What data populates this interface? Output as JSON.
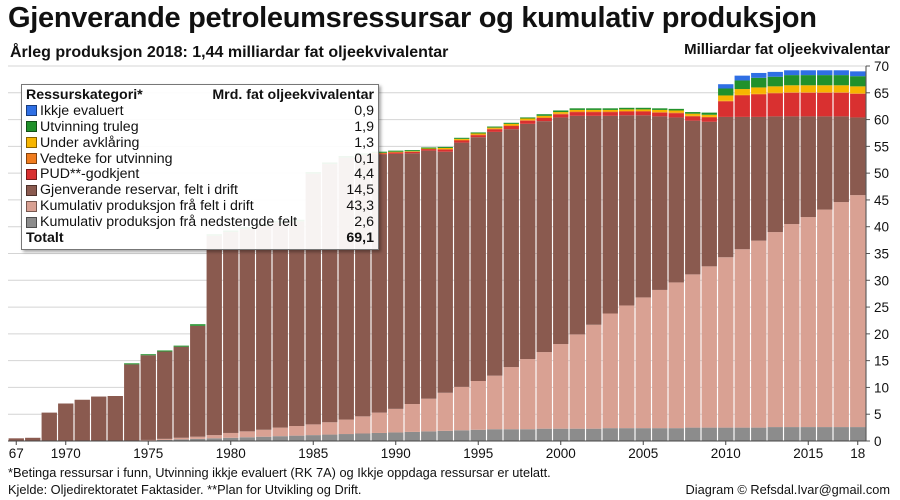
{
  "title": "Gjenverande petroleumsressursar og kumulativ produksjon",
  "subtitle": "Årleg produksjon 2018: 1,44 milliardar fat oljeekvivalentar",
  "footnote1": "*Betinga ressursar i funn, Utvinning ikkje evaluert (RK 7A) og Ikkje oppdaga ressursar er utelatt.",
  "footnote2": "Kjelde: Oljedirektoratet Faktasider. **Plan for Utvikling og Drift.",
  "credit": "Diagram © Refsdal.Ivar@gmail.com",
  "legend": {
    "header_label": "Ressurskategori*",
    "header_value": "Mrd. fat oljeekvivalentar",
    "total_label": "Totalt",
    "total_value": "69,1",
    "items": [
      {
        "label": "Ikkje evaluert",
        "value": "0,9",
        "color": "#2f6fe4"
      },
      {
        "label": "Utvinning truleg",
        "value": "1,9",
        "color": "#21912b"
      },
      {
        "label": "Under avklåring",
        "value": "1,3",
        "color": "#f7b500"
      },
      {
        "label": "Vedteke for utvinning",
        "value": "0,1",
        "color": "#f07c1e"
      },
      {
        "label": "PUD**-godkjent",
        "value": "4,4",
        "color": "#d93030"
      },
      {
        "label": "Gjenverande reservar, felt i drift",
        "value": "14,5",
        "color": "#8a5a4f"
      },
      {
        "label": "Kumulativ produksjon frå felt i drift",
        "value": "43,3",
        "color": "#d9a193"
      },
      {
        "label": "Kumulativ produksjon frå nedstengde felt",
        "value": "2,6",
        "color": "#8c8c8c"
      }
    ]
  },
  "chart_data": {
    "type": "bar",
    "stacked": true,
    "title": "Gjenverande petroleumsressursar og kumulativ produksjon",
    "ylabel": "Milliardar fat oljeekvivalentar",
    "ylim": [
      0,
      70
    ],
    "yticks": [
      0,
      5,
      10,
      15,
      20,
      25,
      30,
      35,
      40,
      45,
      50,
      55,
      60,
      65,
      70
    ],
    "grid": true,
    "legend_position": "top-left",
    "xtick_labels": [
      {
        "year": 1967,
        "label": "67"
      },
      {
        "year": 1970,
        "label": "1970"
      },
      {
        "year": 1975,
        "label": "1975"
      },
      {
        "year": 1980,
        "label": "1980"
      },
      {
        "year": 1985,
        "label": "1985"
      },
      {
        "year": 1990,
        "label": "1990"
      },
      {
        "year": 1995,
        "label": "1995"
      },
      {
        "year": 2000,
        "label": "2000"
      },
      {
        "year": 2005,
        "label": "2005"
      },
      {
        "year": 2010,
        "label": "2010"
      },
      {
        "year": 2015,
        "label": "2015"
      },
      {
        "year": 2018,
        "label": "18"
      }
    ],
    "categories": [
      1967,
      1968,
      1969,
      1970,
      1971,
      1972,
      1973,
      1974,
      1975,
      1976,
      1977,
      1978,
      1979,
      1980,
      1981,
      1982,
      1983,
      1984,
      1985,
      1986,
      1987,
      1988,
      1989,
      1990,
      1991,
      1992,
      1993,
      1994,
      1995,
      1996,
      1997,
      1998,
      1999,
      2000,
      2001,
      2002,
      2003,
      2004,
      2005,
      2006,
      2007,
      2008,
      2009,
      2010,
      2011,
      2012,
      2013,
      2014,
      2015,
      2016,
      2017,
      2018
    ],
    "series": [
      {
        "name": "Kumulativ produksjon frå nedstengde felt",
        "color": "#8c8c8c",
        "values": [
          0,
          0,
          0,
          0,
          0,
          0,
          0,
          0,
          0.1,
          0.2,
          0.3,
          0.4,
          0.5,
          0.6,
          0.7,
          0.8,
          0.9,
          1.0,
          1.1,
          1.2,
          1.3,
          1.4,
          1.5,
          1.6,
          1.7,
          1.8,
          1.9,
          2.0,
          2.1,
          2.2,
          2.2,
          2.2,
          2.3,
          2.3,
          2.3,
          2.3,
          2.4,
          2.4,
          2.4,
          2.4,
          2.4,
          2.5,
          2.5,
          2.5,
          2.5,
          2.5,
          2.6,
          2.6,
          2.6,
          2.6,
          2.6,
          2.6
        ]
      },
      {
        "name": "Kumulativ produksjon frå felt i drift",
        "color": "#d9a193",
        "values": [
          0,
          0,
          0,
          0,
          0,
          0,
          0,
          0,
          0.1,
          0.2,
          0.3,
          0.4,
          0.6,
          0.9,
          1.1,
          1.3,
          1.6,
          1.8,
          2.0,
          2.3,
          2.7,
          3.2,
          3.8,
          4.4,
          5.2,
          6.1,
          7.1,
          8.1,
          9.1,
          10.0,
          11.6,
          13.1,
          14.3,
          15.8,
          17.6,
          19.4,
          21.4,
          22.9,
          24.4,
          25.8,
          27.2,
          28.6,
          30.1,
          31.8,
          33.3,
          34.9,
          36.4,
          37.9,
          39.2,
          40.6,
          42.0,
          43.3
        ]
      },
      {
        "name": "Gjenverande reservar, felt i drift",
        "color": "#8a5a4f",
        "values": [
          0.5,
          0.6,
          5.3,
          7.0,
          7.7,
          8.3,
          8.4,
          14.3,
          15.8,
          16.3,
          17.0,
          20.7,
          37.2,
          37.5,
          37.8,
          38.1,
          38.3,
          38.2,
          46.8,
          48.2,
          48.9,
          48.8,
          48.2,
          47.6,
          46.8,
          46.3,
          45.0,
          45.6,
          45.5,
          45.5,
          44.4,
          43.9,
          43.1,
          42.3,
          40.8,
          39.0,
          36.9,
          35.5,
          34.0,
          32.4,
          30.8,
          28.7,
          27.0,
          26.2,
          24.7,
          23.1,
          21.6,
          20.1,
          18.8,
          17.4,
          16.0,
          14.5
        ]
      },
      {
        "name": "PUD**-godkjent",
        "color": "#d93030",
        "values": [
          0,
          0,
          0,
          0,
          0,
          0,
          0,
          0,
          0,
          0,
          0,
          0,
          0,
          0,
          0,
          0,
          0,
          0,
          0,
          0,
          0,
          0,
          0.2,
          0.3,
          0.3,
          0.3,
          0.4,
          0.4,
          0.4,
          0.5,
          0.6,
          0.6,
          0.6,
          0.6,
          0.7,
          0.7,
          0.7,
          0.7,
          0.7,
          0.7,
          0.8,
          0.8,
          0.8,
          2.9,
          4.0,
          4.2,
          4.3,
          4.4,
          4.4,
          4.4,
          4.4,
          4.4
        ]
      },
      {
        "name": "Vedteke for utvinning",
        "color": "#f07c1e",
        "values": [
          0,
          0,
          0,
          0,
          0,
          0,
          0,
          0,
          0,
          0,
          0,
          0,
          0,
          0,
          0,
          0,
          0,
          0,
          0,
          0,
          0,
          0,
          0,
          0,
          0,
          0,
          0.1,
          0.1,
          0.1,
          0.1,
          0.1,
          0.1,
          0.1,
          0.1,
          0.1,
          0.1,
          0.1,
          0.1,
          0.1,
          0.1,
          0.1,
          0.1,
          0.1,
          0.1,
          0.1,
          0.1,
          0.1,
          0.1,
          0.1,
          0.1,
          0.1,
          0.1
        ]
      },
      {
        "name": "Under avklåring",
        "color": "#f7b500",
        "values": [
          0,
          0,
          0,
          0,
          0,
          0,
          0,
          0,
          0,
          0,
          0,
          0,
          0,
          0,
          0,
          0,
          0,
          0,
          0,
          0,
          0,
          0,
          0.1,
          0.1,
          0.1,
          0.1,
          0.2,
          0.2,
          0.2,
          0.2,
          0.3,
          0.3,
          0.3,
          0.3,
          0.3,
          0.3,
          0.3,
          0.3,
          0.3,
          0.4,
          0.4,
          0.4,
          0.4,
          1.0,
          1.1,
          1.2,
          1.2,
          1.3,
          1.3,
          1.3,
          1.3,
          1.3
        ]
      },
      {
        "name": "Utvinning truleg",
        "color": "#21912b",
        "values": [
          0,
          0,
          0,
          0,
          0,
          0,
          0,
          0.2,
          0.2,
          0.2,
          0.2,
          0.3,
          0.3,
          0.3,
          0.3,
          0.3,
          0.3,
          0.3,
          0.3,
          0.3,
          0.3,
          0.3,
          0.2,
          0.2,
          0.2,
          0.2,
          0.2,
          0.2,
          0.2,
          0.2,
          0.2,
          0.2,
          0.3,
          0.3,
          0.3,
          0.3,
          0.3,
          0.3,
          0.3,
          0.3,
          0.3,
          0.3,
          0.4,
          1.3,
          1.6,
          1.8,
          1.8,
          1.9,
          1.9,
          1.9,
          1.9,
          1.9
        ]
      },
      {
        "name": "Ikkje evaluert",
        "color": "#2f6fe4",
        "values": [
          0,
          0,
          0,
          0,
          0,
          0,
          0,
          0,
          0,
          0,
          0,
          0,
          0,
          0,
          0,
          0,
          0,
          0,
          0,
          0,
          0,
          0,
          0,
          0,
          0,
          0,
          0,
          0,
          0,
          0,
          0,
          0,
          0,
          0,
          0,
          0,
          0,
          0,
          0,
          0,
          0,
          0,
          0,
          0.8,
          0.9,
          0.9,
          0.9,
          0.9,
          0.9,
          0.9,
          0.9,
          0.9
        ]
      }
    ]
  }
}
